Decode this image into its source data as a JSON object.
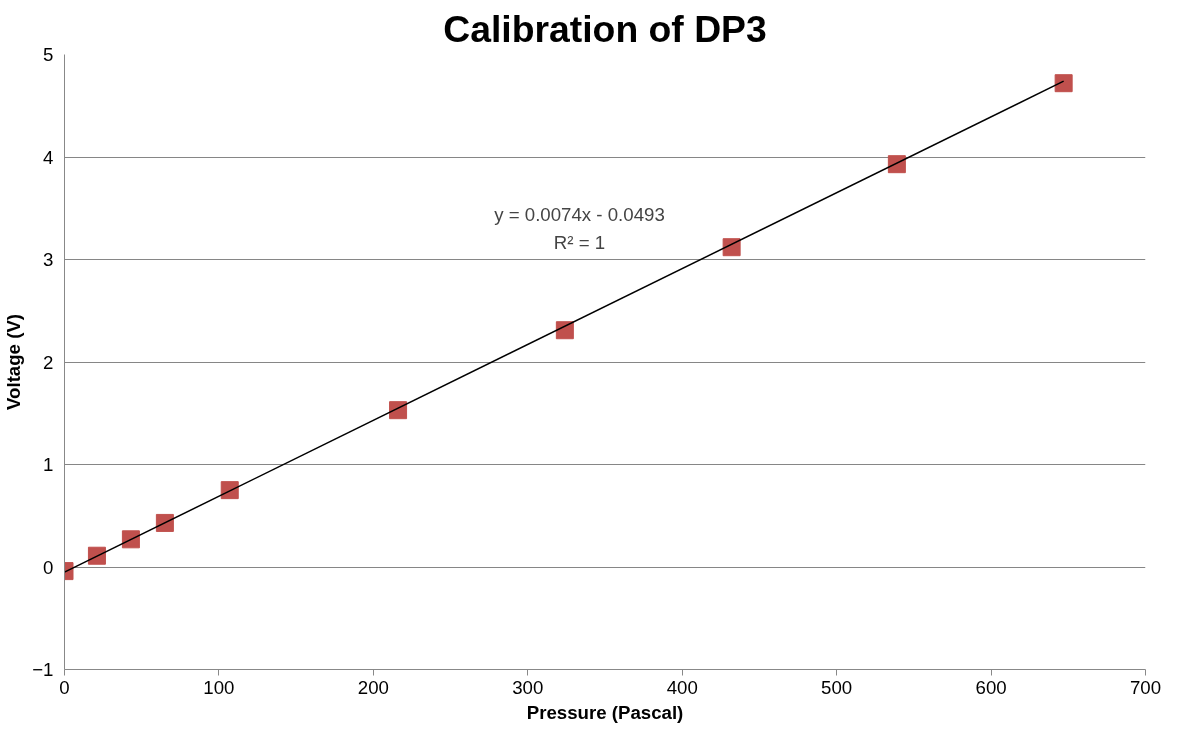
{
  "chart_data": {
    "type": "scatter",
    "title": "Calibration of DP3",
    "xlabel": "Pressure (Pascal)",
    "ylabel": "Voltage (V)",
    "xlim": [
      0,
      700
    ],
    "ylim": [
      -1,
      5
    ],
    "xticks": [
      0,
      100,
      200,
      300,
      400,
      500,
      600,
      700
    ],
    "yticks": [
      -1,
      0,
      1,
      2,
      3,
      4,
      5
    ],
    "grid": "y",
    "series": [
      {
        "color": "#c0504d",
        "marker": "square",
        "x": [
          0,
          21,
          43,
          65,
          107,
          216,
          324,
          432,
          539,
          647
        ],
        "values": [
          -0.04,
          0.11,
          0.27,
          0.43,
          0.75,
          1.53,
          2.31,
          3.12,
          3.93,
          4.72
        ]
      },
      {
        "type": "line",
        "color": "#000000",
        "marker": "none",
        "x": [
          0,
          647
        ],
        "values": [
          -0.05,
          4.74
        ]
      }
    ],
    "annotations": [
      "y = 0.0074x - 0.0493",
      "R² = 1"
    ]
  }
}
